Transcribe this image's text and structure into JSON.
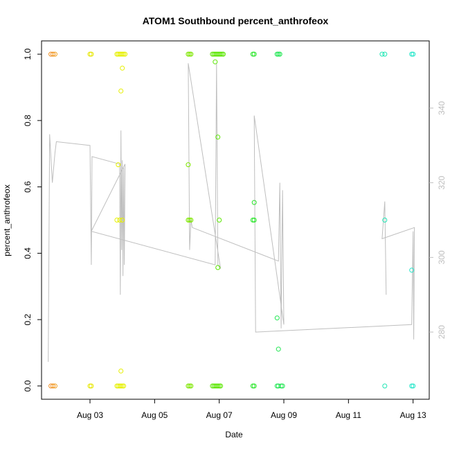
{
  "chart_data": {
    "type": "scatter",
    "title": "ATOM1 Southbound percent_anthrofeox",
    "xlabel": "Date",
    "ylabel": "percent_anthrofeox",
    "x_ticks": [
      "Aug 03",
      "Aug 05",
      "Aug 07",
      "Aug 09",
      "Aug 11",
      "Aug 13"
    ],
    "xlim": [
      "2021-08-01T12:00",
      "2021-08-13T12:00"
    ],
    "ylim": [
      -0.04,
      1.04
    ],
    "y_ticks": [
      "0.0",
      "0.2",
      "0.4",
      "0.6",
      "0.8",
      "1.0"
    ],
    "y2lim": [
      262,
      358
    ],
    "y2_ticks": [
      "280",
      "300",
      "320",
      "340"
    ],
    "grid": false,
    "legend": "none",
    "colors": {
      "title": "#000000",
      "axis": "#000000",
      "secondary_axis": "#bebebe",
      "line": "#bebebe"
    },
    "points": [
      {
        "x": "2021-08-01T19:00",
        "y": 1.0,
        "color": "#f08c1e"
      },
      {
        "x": "2021-08-01T20:30",
        "y": 1.0,
        "color": "#f08c1e"
      },
      {
        "x": "2021-08-01T22:00",
        "y": 1.0,
        "color": "#f0a01e"
      },
      {
        "x": "2021-08-01T19:00",
        "y": 0.0,
        "color": "#f08c1e"
      },
      {
        "x": "2021-08-01T20:30",
        "y": 0.0,
        "color": "#f08c1e"
      },
      {
        "x": "2021-08-01T22:00",
        "y": 0.0,
        "color": "#f0a01e"
      },
      {
        "x": "2021-08-03T00:00",
        "y": 1.0,
        "color": "#e6e600"
      },
      {
        "x": "2021-08-03T01:00",
        "y": 1.0,
        "color": "#e6e600"
      },
      {
        "x": "2021-08-03T00:00",
        "y": 0.0,
        "color": "#e6e600"
      },
      {
        "x": "2021-08-03T01:00",
        "y": 0.0,
        "color": "#e6e600"
      },
      {
        "x": "2021-08-03T20:00",
        "y": 1.0,
        "color": "#e6f000"
      },
      {
        "x": "2021-08-03T21:00",
        "y": 1.0,
        "color": "#e6f000"
      },
      {
        "x": "2021-08-03T22:00",
        "y": 1.0,
        "color": "#e6f000"
      },
      {
        "x": "2021-08-03T23:00",
        "y": 1.0,
        "color": "#e6f000"
      },
      {
        "x": "2021-08-04T00:00",
        "y": 1.0,
        "color": "#e6f000"
      },
      {
        "x": "2021-08-04T01:00",
        "y": 1.0,
        "color": "#e6f000"
      },
      {
        "x": "2021-08-04T02:00",
        "y": 1.0,
        "color": "#e6f000"
      },
      {
        "x": "2021-08-04T00:00",
        "y": 0.958,
        "color": "#e6f000"
      },
      {
        "x": "2021-08-03T23:00",
        "y": 0.889,
        "color": "#e6f000"
      },
      {
        "x": "2021-08-03T21:00",
        "y": 0.667,
        "color": "#e6f000"
      },
      {
        "x": "2021-08-03T20:00",
        "y": 0.5,
        "color": "#e6f000"
      },
      {
        "x": "2021-08-03T22:00",
        "y": 0.5,
        "color": "#e6f000"
      },
      {
        "x": "2021-08-04T00:00",
        "y": 0.5,
        "color": "#e6f000"
      },
      {
        "x": "2021-08-03T23:00",
        "y": 0.045,
        "color": "#e6f000"
      },
      {
        "x": "2021-08-03T20:00",
        "y": 0.0,
        "color": "#e6f000"
      },
      {
        "x": "2021-08-03T21:00",
        "y": 0.0,
        "color": "#e6f000"
      },
      {
        "x": "2021-08-03T22:00",
        "y": 0.0,
        "color": "#e6f000"
      },
      {
        "x": "2021-08-03T23:00",
        "y": 0.0,
        "color": "#e6f000"
      },
      {
        "x": "2021-08-04T00:00",
        "y": 0.0,
        "color": "#e6f000"
      },
      {
        "x": "2021-08-04T01:00",
        "y": 0.0,
        "color": "#e6f000"
      },
      {
        "x": "2021-08-06T01:00",
        "y": 1.0,
        "color": "#7ee600"
      },
      {
        "x": "2021-08-06T02:00",
        "y": 1.0,
        "color": "#7ee600"
      },
      {
        "x": "2021-08-06T03:00",
        "y": 1.0,
        "color": "#7ee600"
      },
      {
        "x": "2021-08-06T01:00",
        "y": 0.667,
        "color": "#7ee600"
      },
      {
        "x": "2021-08-06T01:00",
        "y": 0.5,
        "color": "#7ee600"
      },
      {
        "x": "2021-08-06T02:00",
        "y": 0.5,
        "color": "#7ee600"
      },
      {
        "x": "2021-08-06T03:00",
        "y": 0.5,
        "color": "#7ee600"
      },
      {
        "x": "2021-08-06T01:00",
        "y": 0.0,
        "color": "#7ee600"
      },
      {
        "x": "2021-08-06T02:00",
        "y": 0.0,
        "color": "#7ee600"
      },
      {
        "x": "2021-08-06T03:00",
        "y": 0.0,
        "color": "#7ee600"
      },
      {
        "x": "2021-08-06T19:00",
        "y": 1.0,
        "color": "#5ae600"
      },
      {
        "x": "2021-08-06T20:00",
        "y": 1.0,
        "color": "#5ae600"
      },
      {
        "x": "2021-08-06T21:00",
        "y": 1.0,
        "color": "#5ae600"
      },
      {
        "x": "2021-08-06T22:00",
        "y": 1.0,
        "color": "#5ae600"
      },
      {
        "x": "2021-08-06T23:00",
        "y": 1.0,
        "color": "#5ae600"
      },
      {
        "x": "2021-08-07T00:00",
        "y": 1.0,
        "color": "#5ae600"
      },
      {
        "x": "2021-08-07T01:00",
        "y": 1.0,
        "color": "#5ae600"
      },
      {
        "x": "2021-08-07T02:00",
        "y": 1.0,
        "color": "#5ae600"
      },
      {
        "x": "2021-08-07T03:00",
        "y": 1.0,
        "color": "#5ae600"
      },
      {
        "x": "2021-08-06T21:00",
        "y": 0.977,
        "color": "#5ae600"
      },
      {
        "x": "2021-08-06T23:00",
        "y": 0.75,
        "color": "#5ae600"
      },
      {
        "x": "2021-08-07T00:00",
        "y": 0.5,
        "color": "#5ae600"
      },
      {
        "x": "2021-08-06T23:00",
        "y": 0.357,
        "color": "#5ae600"
      },
      {
        "x": "2021-08-06T19:00",
        "y": 0.0,
        "color": "#5ae600"
      },
      {
        "x": "2021-08-06T20:00",
        "y": 0.0,
        "color": "#5ae600"
      },
      {
        "x": "2021-08-06T21:00",
        "y": 0.0,
        "color": "#5ae600"
      },
      {
        "x": "2021-08-06T22:00",
        "y": 0.0,
        "color": "#5ae600"
      },
      {
        "x": "2021-08-06T23:00",
        "y": 0.0,
        "color": "#5ae600"
      },
      {
        "x": "2021-08-07T00:00",
        "y": 0.0,
        "color": "#5ae600"
      },
      {
        "x": "2021-08-07T01:00",
        "y": 0.0,
        "color": "#5ae600"
      },
      {
        "x": "2021-08-08T01:00",
        "y": 1.0,
        "color": "#28e628"
      },
      {
        "x": "2021-08-08T02:00",
        "y": 1.0,
        "color": "#28e628"
      },
      {
        "x": "2021-08-08T02:00",
        "y": 0.553,
        "color": "#28e628"
      },
      {
        "x": "2021-08-08T01:00",
        "y": 0.5,
        "color": "#28e628"
      },
      {
        "x": "2021-08-08T02:00",
        "y": 0.5,
        "color": "#28e628"
      },
      {
        "x": "2021-08-08T01:00",
        "y": 0.0,
        "color": "#28e628"
      },
      {
        "x": "2021-08-08T02:00",
        "y": 0.0,
        "color": "#28e628"
      },
      {
        "x": "2021-08-08T19:00",
        "y": 1.0,
        "color": "#1ee650"
      },
      {
        "x": "2021-08-08T20:00",
        "y": 1.0,
        "color": "#1ee650"
      },
      {
        "x": "2021-08-08T21:00",
        "y": 1.0,
        "color": "#1ee650"
      },
      {
        "x": "2021-08-08T19:00",
        "y": 0.205,
        "color": "#1ee650"
      },
      {
        "x": "2021-08-08T20:00",
        "y": 0.111,
        "color": "#1ee650"
      },
      {
        "x": "2021-08-08T19:00",
        "y": 0.0,
        "color": "#1ee650"
      },
      {
        "x": "2021-08-08T20:00",
        "y": 0.0,
        "color": "#1ee650"
      },
      {
        "x": "2021-08-08T22:00",
        "y": 0.0,
        "color": "#1ee650"
      },
      {
        "x": "2021-08-08T23:00",
        "y": 0.0,
        "color": "#1ee650"
      },
      {
        "x": "2021-08-12T01:00",
        "y": 1.0,
        "color": "#1ee6b4"
      },
      {
        "x": "2021-08-12T03:00",
        "y": 1.0,
        "color": "#1ee6b4"
      },
      {
        "x": "2021-08-12T03:00",
        "y": 0.5,
        "color": "#1ee6b4"
      },
      {
        "x": "2021-08-12T03:00",
        "y": 0.0,
        "color": "#1ee6b4"
      },
      {
        "x": "2021-08-12T23:00",
        "y": 1.0,
        "color": "#1ee6c8"
      },
      {
        "x": "2021-08-13T00:00",
        "y": 1.0,
        "color": "#1ee6c8"
      },
      {
        "x": "2021-08-12T23:00",
        "y": 0.349,
        "color": "#1ee6c8"
      },
      {
        "x": "2021-08-12T23:00",
        "y": 0.0,
        "color": "#1ee6c8"
      },
      {
        "x": "2021-08-13T00:00",
        "y": 0.0,
        "color": "#1ee6c8"
      }
    ],
    "line_series": [
      {
        "x": "2021-08-01T17:00",
        "y2": 272
      },
      {
        "x": "2021-08-01T18:00",
        "y2": 333
      },
      {
        "x": "2021-08-01T20:00",
        "y2": 320
      },
      {
        "x": "2021-08-01T22:00",
        "y2": 328
      },
      {
        "x": "2021-08-01T23:00",
        "y2": 331
      },
      {
        "x": "2021-08-03T00:00",
        "y2": 330
      },
      {
        "x": "2021-08-03T01:00",
        "y2": 298
      },
      {
        "x": "2021-08-03T01:30",
        "y2": 327
      },
      {
        "x": "2021-08-03T22:00",
        "y2": 325
      },
      {
        "x": "2021-08-03T22:30",
        "y2": 290
      },
      {
        "x": "2021-08-03T23:00",
        "y2": 334
      },
      {
        "x": "2021-08-03T23:30",
        "y2": 302
      },
      {
        "x": "2021-08-04T00:00",
        "y2": 326
      },
      {
        "x": "2021-08-04T00:30",
        "y2": 295
      },
      {
        "x": "2021-08-04T01:00",
        "y2": 324
      },
      {
        "x": "2021-08-04T01:30",
        "y2": 298
      },
      {
        "x": "2021-08-04T02:00",
        "y2": 325
      },
      {
        "x": "2021-08-03T01:00",
        "y2": 307
      },
      {
        "x": "2021-08-06T21:00",
        "y2": 298
      },
      {
        "x": "2021-08-06T22:00",
        "y2": 352
      },
      {
        "x": "2021-08-06T23:00",
        "y2": 298
      },
      {
        "x": "2021-08-07T01:00",
        "y2": 297
      },
      {
        "x": "2021-08-06T01:00",
        "y2": 352
      },
      {
        "x": "2021-08-06T02:00",
        "y2": 302
      },
      {
        "x": "2021-08-06T03:00",
        "y2": 310
      },
      {
        "x": "2021-08-06T04:00",
        "y2": 308
      },
      {
        "x": "2021-08-08T20:00",
        "y2": 299
      },
      {
        "x": "2021-08-08T21:00",
        "y2": 320
      },
      {
        "x": "2021-08-08T22:00",
        "y2": 281
      },
      {
        "x": "2021-08-08T23:00",
        "y2": 318
      },
      {
        "x": "2021-08-09T00:00",
        "y2": 282
      },
      {
        "x": "2021-08-08T02:00",
        "y2": 338
      },
      {
        "x": "2021-08-08T03:00",
        "y2": 280
      },
      {
        "x": "2021-08-12T23:00",
        "y2": 282
      },
      {
        "x": "2021-08-13T00:00",
        "y2": 307
      },
      {
        "x": "2021-08-13T00:30",
        "y2": 278
      },
      {
        "x": "2021-08-13T01:00",
        "y2": 308
      },
      {
        "x": "2021-08-12T01:00",
        "y2": 305
      },
      {
        "x": "2021-08-12T03:00",
        "y2": 315
      },
      {
        "x": "2021-08-12T04:00",
        "y2": 290
      }
    ]
  }
}
